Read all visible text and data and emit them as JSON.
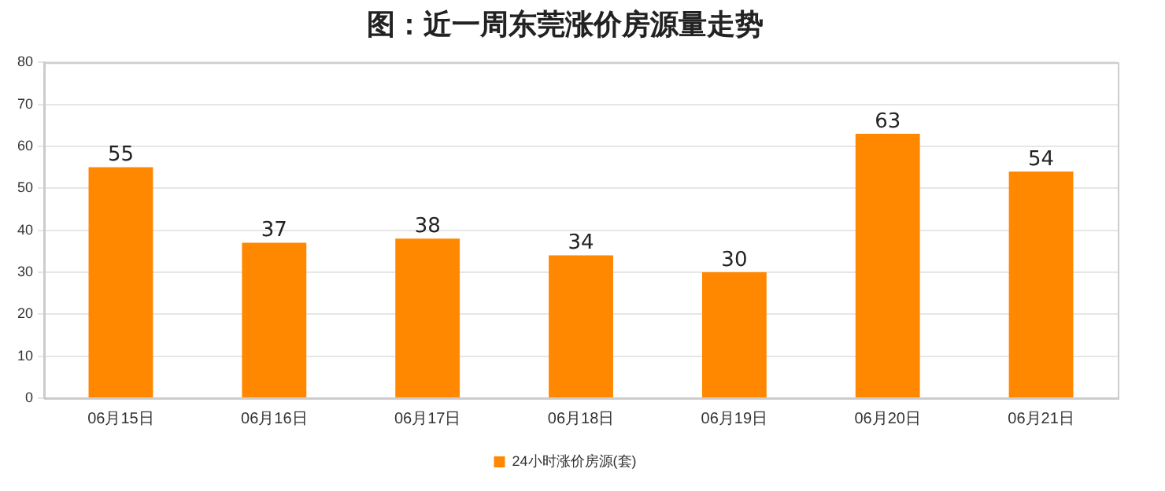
{
  "chart_data": {
    "type": "bar",
    "title": "图：近一周东莞涨价房源量走势",
    "categories": [
      "06月15日",
      "06月16日",
      "06月17日",
      "06月18日",
      "06月19日",
      "06月20日",
      "06月21日"
    ],
    "series": [
      {
        "name": "24小时涨价房源(套)",
        "color": "#ff8800",
        "values": [
          55,
          37,
          38,
          34,
          30,
          63,
          54
        ]
      }
    ],
    "ylim": [
      0,
      80
    ],
    "yticks": [
      0,
      10,
      20,
      30,
      40,
      50,
      60,
      70,
      80
    ],
    "grid": "y",
    "legend": "bottom",
    "data_labels": true
  }
}
